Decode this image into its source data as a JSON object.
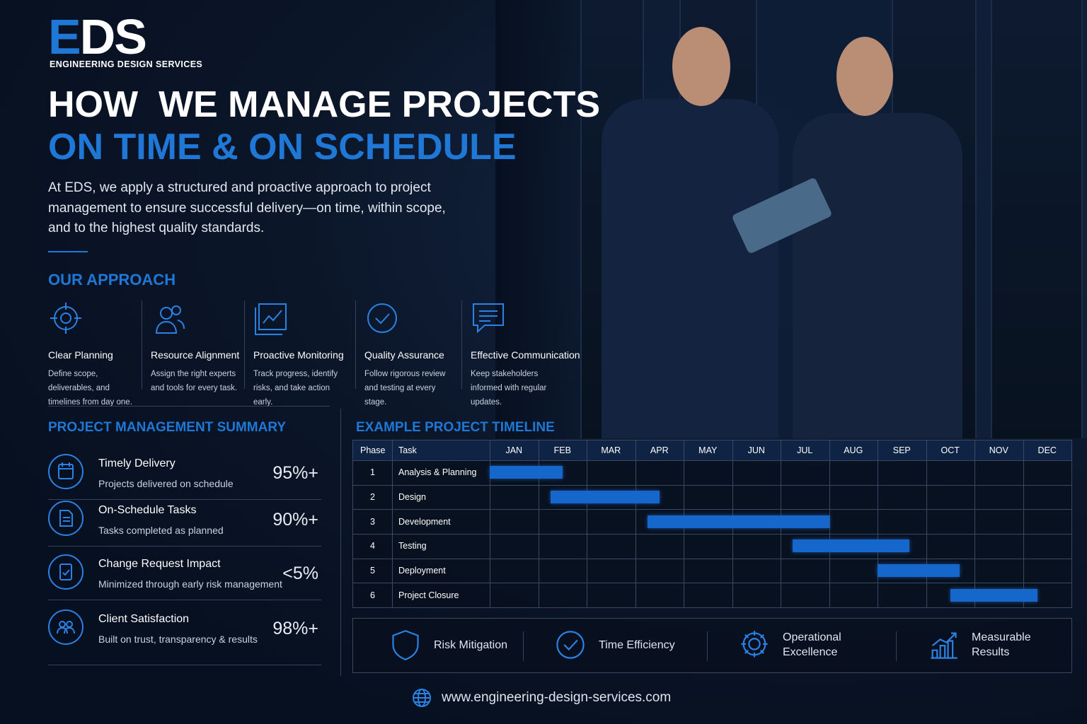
{
  "header": {
    "logo": "EDS",
    "company": "ENGINEERING DESIGN SERVICES",
    "title_line1": "HOW  WE MANAGE PROJECTS",
    "title_line2": "ON TIME & ON SCHEDULE",
    "intro": "At EDS, we apply a structured and proactive approach to project management to ensure successful delivery—on time, within scope, and to the highest quality standards."
  },
  "approach": {
    "heading": "OUR APPROACH",
    "items": [
      {
        "title": "Clear Planning",
        "text": "Define scope, deliverables, and timelines from day one."
      },
      {
        "title": "Resource Alignment",
        "text": "Assign the right experts and tools for every task."
      },
      {
        "title": "Proactive Monitoring",
        "text": "Track progress, identify risks, and take action early."
      },
      {
        "title": "Quality Assurance",
        "text": "Follow rigorous review and testing at every stage."
      },
      {
        "title": "Effective Communication",
        "text": "Keep stakeholders informed with regular updates."
      }
    ]
  },
  "summary": {
    "heading": "PROJECT MANAGEMENT SUMMARY",
    "items": [
      {
        "title": "Timely Delivery",
        "text": "Projects delivered on schedule",
        "value": "95%+"
      },
      {
        "title": "On-Schedule Tasks",
        "text": "Tasks completed as planned",
        "value": "90%+"
      },
      {
        "title": "Change Request Impact",
        "text": "Minimized through early risk management",
        "value": "<5%"
      },
      {
        "title": "Client Satisfaction",
        "text": "Built on trust, transparency & results",
        "value": "98%+"
      }
    ]
  },
  "timeline": {
    "heading": "EXAMPLE PROJECT TIMELINE",
    "columns": [
      "Phase",
      "Task"
    ],
    "months": [
      "JAN",
      "FEB",
      "MAR",
      "APR",
      "MAY",
      "JUN",
      "JUL",
      "AUG",
      "SEP",
      "OCT",
      "NOV",
      "DEC"
    ],
    "tasks": [
      {
        "phase": 1,
        "name": "Analysis & Planning",
        "start": 0,
        "end": 1.5
      },
      {
        "phase": 2,
        "name": "Design",
        "start": 1.25,
        "end": 3.5
      },
      {
        "phase": 3,
        "name": "Development",
        "start": 3.25,
        "end": 7
      },
      {
        "phase": 4,
        "name": "Testing",
        "start": 6.25,
        "end": 8.65
      },
      {
        "phase": 5,
        "name": "Deployment",
        "start": 8,
        "end": 9.7
      },
      {
        "phase": 6,
        "name": "Project Closure",
        "start": 9.5,
        "end": 11.3
      }
    ]
  },
  "benefits": [
    "Risk Mitigation",
    "Time Efficiency",
    "Operational Excellence",
    "Measurable Results"
  ],
  "footer": {
    "url": "www.engineering-design-services.com"
  }
}
